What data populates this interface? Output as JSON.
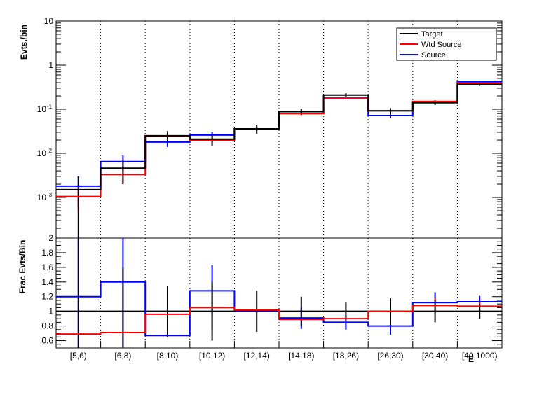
{
  "chart_data": {
    "type": "line",
    "categories": [
      "[5,6)",
      "[6,8)",
      "[8,10)",
      "[10,12)",
      "[12,14)",
      "[14,18)",
      "[18,26)",
      "[26,30)",
      "[30,40)",
      "[40,1000)"
    ],
    "xlabel": "E",
    "grid": "vertical dotted",
    "legend_position": "top-right",
    "top_panel": {
      "ylabel": "Evts./bin",
      "yscale": "log",
      "ylim": [
        0.00012,
        10
      ],
      "yticks": [
        {
          "v": 0.001,
          "base": "10",
          "exp": "-3"
        },
        {
          "v": 0.01,
          "base": "10",
          "exp": "-2"
        },
        {
          "v": 0.1,
          "base": "10",
          "exp": "-1"
        },
        {
          "v": 1,
          "base": "1",
          "exp": ""
        },
        {
          "v": 10,
          "base": "10",
          "exp": ""
        }
      ],
      "series": [
        {
          "name": "Target",
          "color": "#000000",
          "values": [
            0.0015,
            0.0046,
            0.025,
            0.021,
            0.036,
            0.088,
            0.21,
            0.092,
            0.14,
            0.37
          ],
          "errors": [
            0.0015,
            0.0026,
            0.007,
            0.006,
            0.008,
            0.013,
            0.02,
            0.014,
            0.015,
            0.03
          ]
        },
        {
          "name": "Wtd Source",
          "color": "#ff0000",
          "values": [
            0.00105,
            0.0033,
            0.024,
            0.02,
            0.036,
            0.08,
            0.18,
            0.092,
            0.15,
            0.4
          ],
          "errors": [
            0.00055,
            0.0012,
            0.004,
            0.004,
            0.004,
            0.006,
            0.01,
            0.008,
            0.009,
            0.015
          ]
        },
        {
          "name": "Source",
          "color": "#0000ff",
          "values": [
            0.0018,
            0.0065,
            0.018,
            0.026,
            0.036,
            0.08,
            0.18,
            0.072,
            0.15,
            0.42
          ],
          "errors": [
            0.0012,
            0.0025,
            0.004,
            0.004,
            0.004,
            0.006,
            0.01,
            0.008,
            0.009,
            0.015
          ]
        }
      ]
    },
    "bottom_panel": {
      "ylabel": "Frac Evts/Bin",
      "ylim": [
        0.5,
        2.0
      ],
      "yticks": [
        0.6,
        0.8,
        1,
        1.2,
        1.4,
        1.6,
        1.8,
        2
      ],
      "reference": 1,
      "series": [
        {
          "name": "Target",
          "color": "#000000",
          "values": [
            1,
            1,
            1,
            1,
            1,
            1,
            1,
            1,
            1,
            1
          ],
          "errors": [
            1.0,
            0.6,
            0.35,
            0.4,
            0.28,
            0.2,
            0.12,
            0.18,
            0.15,
            0.1
          ]
        },
        {
          "name": "Wtd Source",
          "color": "#ff0000",
          "values": [
            0.69,
            0.71,
            0.96,
            1.05,
            1.02,
            0.89,
            0.9,
            1.0,
            1.08,
            1.07
          ],
          "errors": [
            0.0,
            0.0,
            0.25,
            0.3,
            0.0,
            0.0,
            0.0,
            0.1,
            0.1,
            0.06
          ]
        },
        {
          "name": "Source",
          "color": "#0000ff",
          "values": [
            1.2,
            1.4,
            0.67,
            1.28,
            1.01,
            0.91,
            0.85,
            0.8,
            1.12,
            1.13
          ],
          "errors": [
            0.8,
            0.9,
            0.0,
            0.35,
            0.0,
            0.15,
            0.1,
            0.12,
            0.14,
            0.08
          ]
        }
      ]
    }
  }
}
